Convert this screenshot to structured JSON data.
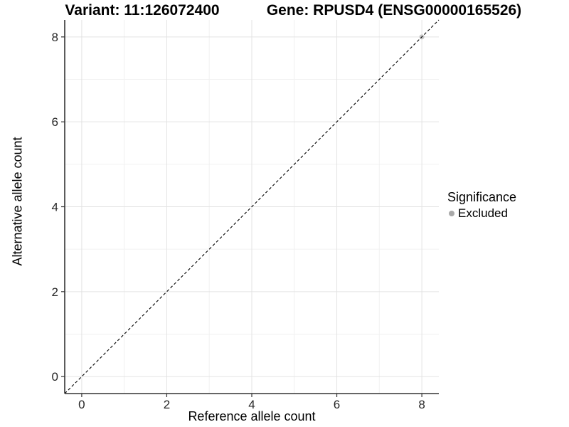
{
  "chart_data": {
    "type": "scatter",
    "titles": {
      "left": "Variant: 11:126072400",
      "right": "Gene: RPUSD4 (ENSG00000165526)"
    },
    "xlabel": "Reference allele count",
    "ylabel": "Alternative allele count",
    "xlim": [
      0,
      8
    ],
    "ylim": [
      0,
      8
    ],
    "x_ticks": [
      0,
      2,
      4,
      6,
      8
    ],
    "y_ticks": [
      0,
      2,
      4,
      6,
      8
    ],
    "x_minor_ticks": [
      1,
      3,
      5,
      7
    ],
    "y_minor_ticks": [
      1,
      3,
      5,
      7
    ],
    "grid": true,
    "points": [
      {
        "x": 8,
        "y": 8,
        "significance": "Excluded",
        "color": "#c4c4c4"
      }
    ],
    "reference_line": {
      "type": "identity",
      "slope": 1,
      "intercept": 0,
      "style": "dashed",
      "color": "#000000"
    },
    "legend": {
      "title": "Significance",
      "position": "right",
      "items": [
        {
          "label": "Excluded",
          "color": "#a9a9a9"
        }
      ]
    }
  },
  "colors": {
    "background": "#ffffff",
    "grid_major": "#e3e3e3",
    "grid_minor": "#f1f1f1",
    "axis_line": "#333333",
    "tick_mark": "#333333",
    "tick_label": "#262626",
    "title_text": "#000000"
  }
}
